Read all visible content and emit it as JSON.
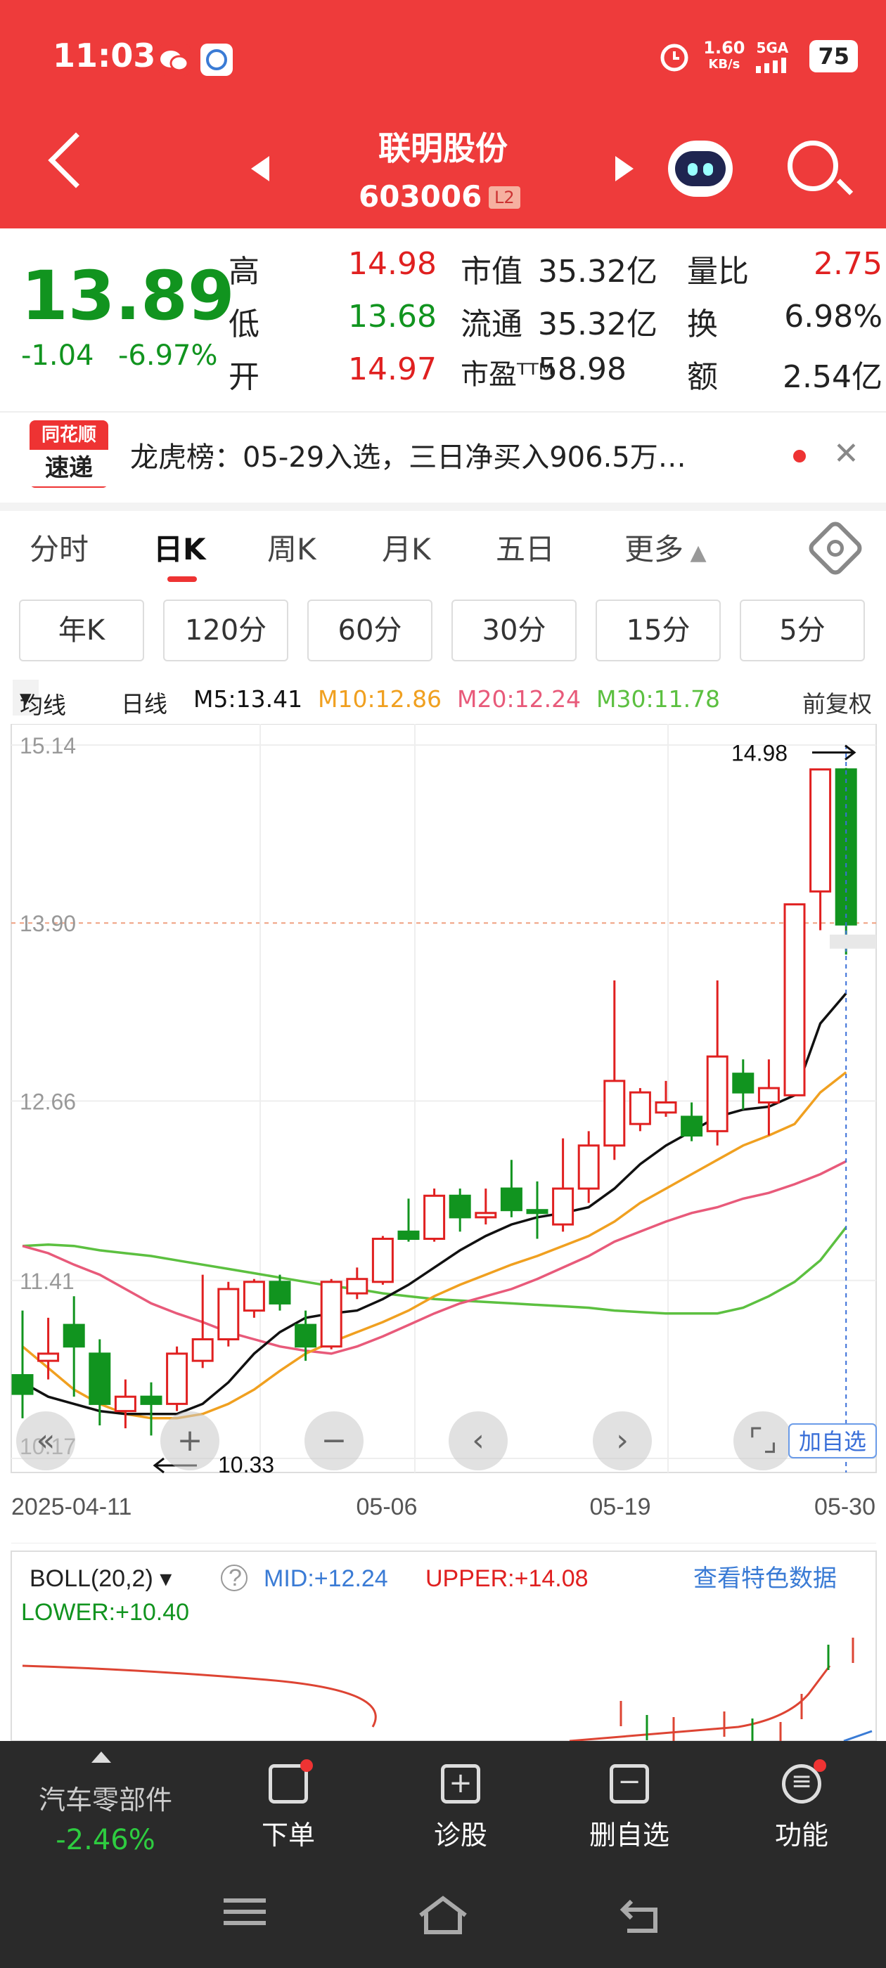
{
  "status": {
    "time": "11:03",
    "net_speed": "1.60",
    "net_unit": "KB/s",
    "net_type": "5GA",
    "battery": "75"
  },
  "header": {
    "name": "联明股份",
    "code": "603006",
    "badge": "L2"
  },
  "quote": {
    "price": "13.89",
    "change": "-1.04",
    "change_pct": "-6.97%",
    "rows": [
      {
        "l1": "高",
        "v1": "14.98",
        "l2": "市值",
        "v2": "35.32亿",
        "l3": "量比",
        "v3": "2.75"
      },
      {
        "l1": "低",
        "v1": "13.68",
        "l2": "流通",
        "v2": "35.32亿",
        "l3": "换",
        "v3": "6.98%"
      },
      {
        "l1": "开",
        "v1": "14.97",
        "l2": "市盈ᵀᵀᴹ",
        "v2": "58.98",
        "l3": "额",
        "v3": "2.54亿"
      }
    ]
  },
  "news": {
    "logo_top": "同花顺",
    "logo_bottom": "速递",
    "text": "龙虎榜：05-29入选，三日净买入906.5万…"
  },
  "tabs": [
    "分时",
    "日K",
    "周K",
    "月K",
    "五日",
    "更多"
  ],
  "sub_tabs": [
    "年K",
    "120分",
    "60分",
    "30分",
    "15分",
    "5分"
  ],
  "legend": {
    "ma_label": "均线",
    "period": "日线",
    "m5": "M5:13.41",
    "m10": "M10:12.86",
    "m20": "M20:12.24",
    "m30": "M30:11.78",
    "adjust": "前复权"
  },
  "boll": {
    "label": "BOLL(20,2)",
    "mid": "MID:+12.24",
    "upper": "UPPER:+14.08",
    "lower": "LOWER:+10.40",
    "link": "查看特色数据"
  },
  "add_watch": "加自选",
  "colors": {
    "up": "#e02020",
    "down": "#11941f",
    "ma5": "#111111",
    "ma10": "#f0a020",
    "ma20": "#e85a7a",
    "ma30": "#5cc040"
  },
  "chart_data": {
    "type": "candlestick",
    "title": "",
    "x_ticks": [
      "2025-04-11",
      "05-06",
      "05-19",
      "05-30"
    ],
    "y_ticks": [
      15.14,
      13.9,
      12.66,
      11.41,
      10.17
    ],
    "ylim": [
      10.17,
      15.14
    ],
    "high_label": "14.98",
    "low_label": "10.33",
    "candles": [
      {
        "o": 10.75,
        "c": 10.62,
        "h": 11.2,
        "l": 10.45
      },
      {
        "o": 10.85,
        "c": 10.9,
        "h": 11.15,
        "l": 10.72
      },
      {
        "o": 11.1,
        "c": 10.95,
        "h": 11.3,
        "l": 10.6
      },
      {
        "o": 10.9,
        "c": 10.55,
        "h": 11.0,
        "l": 10.4
      },
      {
        "o": 10.5,
        "c": 10.6,
        "h": 10.72,
        "l": 10.38
      },
      {
        "o": 10.6,
        "c": 10.55,
        "h": 10.7,
        "l": 10.33
      },
      {
        "o": 10.55,
        "c": 10.9,
        "h": 10.95,
        "l": 10.5
      },
      {
        "o": 10.85,
        "c": 11.0,
        "h": 11.45,
        "l": 10.8
      },
      {
        "o": 11.0,
        "c": 11.35,
        "h": 11.4,
        "l": 10.95
      },
      {
        "o": 11.2,
        "c": 11.4,
        "h": 11.42,
        "l": 11.15
      },
      {
        "o": 11.4,
        "c": 11.25,
        "h": 11.45,
        "l": 11.2
      },
      {
        "o": 11.1,
        "c": 10.95,
        "h": 11.2,
        "l": 10.85
      },
      {
        "o": 10.95,
        "c": 11.4,
        "h": 11.42,
        "l": 10.93
      },
      {
        "o": 11.32,
        "c": 11.42,
        "h": 11.5,
        "l": 11.28
      },
      {
        "o": 11.4,
        "c": 11.7,
        "h": 11.72,
        "l": 11.38
      },
      {
        "o": 11.75,
        "c": 11.7,
        "h": 11.98,
        "l": 11.68
      },
      {
        "o": 11.7,
        "c": 12.0,
        "h": 12.05,
        "l": 11.68
      },
      {
        "o": 12.0,
        "c": 11.85,
        "h": 12.05,
        "l": 11.75
      },
      {
        "o": 11.85,
        "c": 11.88,
        "h": 12.05,
        "l": 11.8
      },
      {
        "o": 12.05,
        "c": 11.9,
        "h": 12.25,
        "l": 11.85
      },
      {
        "o": 11.9,
        "c": 11.88,
        "h": 12.1,
        "l": 11.7
      },
      {
        "o": 11.8,
        "c": 12.05,
        "h": 12.4,
        "l": 11.75
      },
      {
        "o": 12.05,
        "c": 12.35,
        "h": 12.45,
        "l": 11.95
      },
      {
        "o": 12.35,
        "c": 12.8,
        "h": 13.5,
        "l": 12.25
      },
      {
        "o": 12.5,
        "c": 12.72,
        "h": 12.75,
        "l": 12.45
      },
      {
        "o": 12.58,
        "c": 12.65,
        "h": 12.8,
        "l": 12.55
      },
      {
        "o": 12.55,
        "c": 12.42,
        "h": 12.65,
        "l": 12.38
      },
      {
        "o": 12.45,
        "c": 12.97,
        "h": 13.5,
        "l": 12.35
      },
      {
        "o": 12.85,
        "c": 12.72,
        "h": 12.95,
        "l": 12.6
      },
      {
        "o": 12.65,
        "c": 12.75,
        "h": 12.95,
        "l": 12.42
      },
      {
        "o": 12.7,
        "c": 14.03,
        "h": 14.03,
        "l": 12.7
      },
      {
        "o": 14.12,
        "c": 14.97,
        "h": 14.97,
        "l": 13.85
      },
      {
        "o": 14.97,
        "c": 13.89,
        "h": 14.98,
        "l": 13.68
      }
    ],
    "ma5": [
      10.7,
      10.6,
      10.55,
      10.5,
      10.48,
      10.48,
      10.48,
      10.55,
      10.7,
      10.9,
      11.05,
      11.15,
      11.18,
      11.2,
      11.28,
      11.38,
      11.5,
      11.62,
      11.72,
      11.8,
      11.85,
      11.88,
      11.92,
      12.05,
      12.22,
      12.35,
      12.45,
      12.55,
      12.6,
      12.62,
      12.7,
      13.2,
      13.41
    ],
    "ma10": [
      10.95,
      10.8,
      10.65,
      10.55,
      10.48,
      10.45,
      10.45,
      10.48,
      10.55,
      10.65,
      10.78,
      10.9,
      10.98,
      11.05,
      11.12,
      11.2,
      11.3,
      11.38,
      11.45,
      11.52,
      11.58,
      11.65,
      11.72,
      11.82,
      11.95,
      12.05,
      12.15,
      12.25,
      12.35,
      12.42,
      12.5,
      12.72,
      12.86
    ],
    "ma20": [
      11.65,
      11.6,
      11.52,
      11.45,
      11.35,
      11.25,
      11.18,
      11.12,
      11.05,
      11.0,
      10.95,
      10.92,
      10.9,
      10.95,
      11.02,
      11.1,
      11.18,
      11.25,
      11.3,
      11.35,
      11.42,
      11.5,
      11.58,
      11.68,
      11.75,
      11.82,
      11.88,
      11.92,
      11.98,
      12.02,
      12.08,
      12.15,
      12.24
    ],
    "ma30": [
      11.65,
      11.66,
      11.65,
      11.62,
      11.6,
      11.58,
      11.55,
      11.52,
      11.49,
      11.46,
      11.43,
      11.4,
      11.37,
      11.35,
      11.32,
      11.3,
      11.28,
      11.27,
      11.26,
      11.25,
      11.24,
      11.23,
      11.22,
      11.2,
      11.19,
      11.18,
      11.18,
      11.18,
      11.22,
      11.3,
      11.4,
      11.55,
      11.78
    ]
  },
  "bottom": {
    "sector": "汽车零部件",
    "sector_chg": "-2.46%",
    "items": [
      "下单",
      "诊股",
      "删自选",
      "功能"
    ]
  }
}
